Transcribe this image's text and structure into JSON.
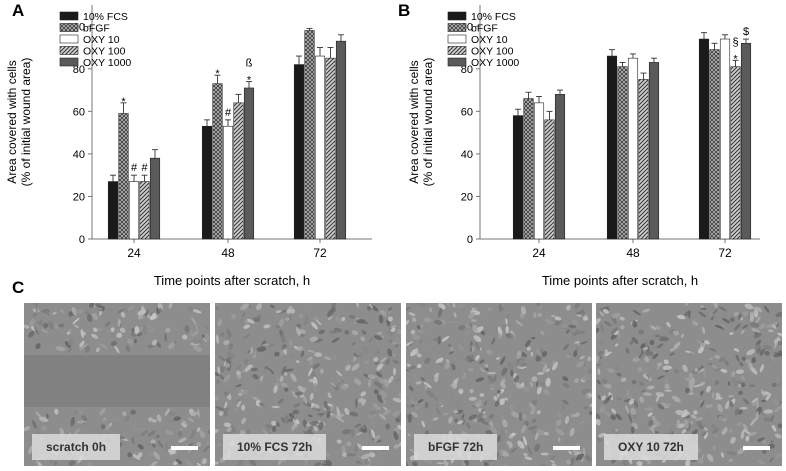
{
  "panels": {
    "a": {
      "label": "A"
    },
    "b": {
      "label": "B"
    },
    "c": {
      "label": "C"
    }
  },
  "chart_data": [
    {
      "type": "bar",
      "panel": "A",
      "categories": [
        "24",
        "48",
        "72"
      ],
      "series": [
        {
          "name": "10% FCS",
          "values": [
            27,
            53,
            82
          ],
          "errors": [
            3,
            3,
            4
          ]
        },
        {
          "name": "bFGF",
          "values": [
            59,
            73,
            98
          ],
          "errors": [
            5,
            4,
            1
          ]
        },
        {
          "name": "OXY 10",
          "values": [
            27,
            53,
            86
          ],
          "errors": [
            3,
            3,
            4
          ]
        },
        {
          "name": "OXY 100",
          "values": [
            27,
            64,
            85
          ],
          "errors": [
            3,
            4,
            5
          ]
        },
        {
          "name": "OXY 1000",
          "values": [
            38,
            71,
            93
          ],
          "errors": [
            4,
            3,
            3
          ]
        }
      ],
      "annotations": [
        {
          "category": "24",
          "series": "bFGF",
          "marks": [
            "*"
          ]
        },
        {
          "category": "24",
          "series": "OXY 10",
          "marks": [
            "#"
          ]
        },
        {
          "category": "24",
          "series": "OXY 100",
          "marks": [
            "#"
          ]
        },
        {
          "category": "48",
          "series": "bFGF",
          "marks": [
            "*"
          ]
        },
        {
          "category": "48",
          "series": "OXY 10",
          "marks": [
            "#"
          ]
        },
        {
          "category": "48",
          "series": "OXY 1000",
          "marks": [
            "*",
            "ß"
          ]
        }
      ],
      "xlabel": "Time points after scratch, h",
      "ylabel": [
        "Area covered with cells",
        "(% of initial wound area)"
      ],
      "yticks": [
        0,
        20,
        40,
        60,
        80,
        100
      ],
      "ylim": [
        0,
        110
      ],
      "legend_position": "top-left",
      "grid": false
    },
    {
      "type": "bar",
      "panel": "B",
      "categories": [
        "24",
        "48",
        "72"
      ],
      "series": [
        {
          "name": "10% FCS",
          "values": [
            58,
            86,
            94
          ],
          "errors": [
            3,
            3,
            3
          ]
        },
        {
          "name": "bFGF",
          "values": [
            66,
            81,
            89
          ],
          "errors": [
            3,
            2,
            3
          ]
        },
        {
          "name": "OXY 10",
          "values": [
            64,
            85,
            94
          ],
          "errors": [
            3,
            2,
            2
          ]
        },
        {
          "name": "OXY 100",
          "values": [
            56,
            75,
            81
          ],
          "errors": [
            4,
            3,
            3
          ]
        },
        {
          "name": "OXY 1000",
          "values": [
            68,
            83,
            92
          ],
          "errors": [
            2,
            2,
            2
          ]
        }
      ],
      "annotations": [
        {
          "category": "72",
          "series": "OXY 100",
          "marks": [
            "*",
            "§"
          ]
        },
        {
          "category": "72",
          "series": "OXY 1000",
          "marks": [
            "$"
          ]
        }
      ],
      "xlabel": "Time points after scratch, h",
      "ylabel": [
        "Area covered with cells",
        "(% of initial wound area)"
      ],
      "yticks": [
        0,
        20,
        40,
        60,
        80,
        100
      ],
      "ylim": [
        0,
        110
      ],
      "legend_position": "top-left",
      "grid": false
    }
  ],
  "series_styles": [
    {
      "fill": "#1a1a1a",
      "pattern": "solid"
    },
    {
      "fill": "#8c8c8c",
      "pattern": "crosshatch"
    },
    {
      "fill": "#ffffff",
      "pattern": "solid"
    },
    {
      "fill": "#8a8a8a",
      "pattern": "diagonal"
    },
    {
      "fill": "#5a5a5a",
      "pattern": "solid"
    }
  ],
  "photos": [
    {
      "caption": "scratch 0h",
      "kind": "scratch"
    },
    {
      "caption": "10% FCS 72h",
      "kind": "confluent"
    },
    {
      "caption": "bFGF 72h",
      "kind": "confluent"
    },
    {
      "caption": "OXY 10 72h",
      "kind": "confluent"
    }
  ]
}
